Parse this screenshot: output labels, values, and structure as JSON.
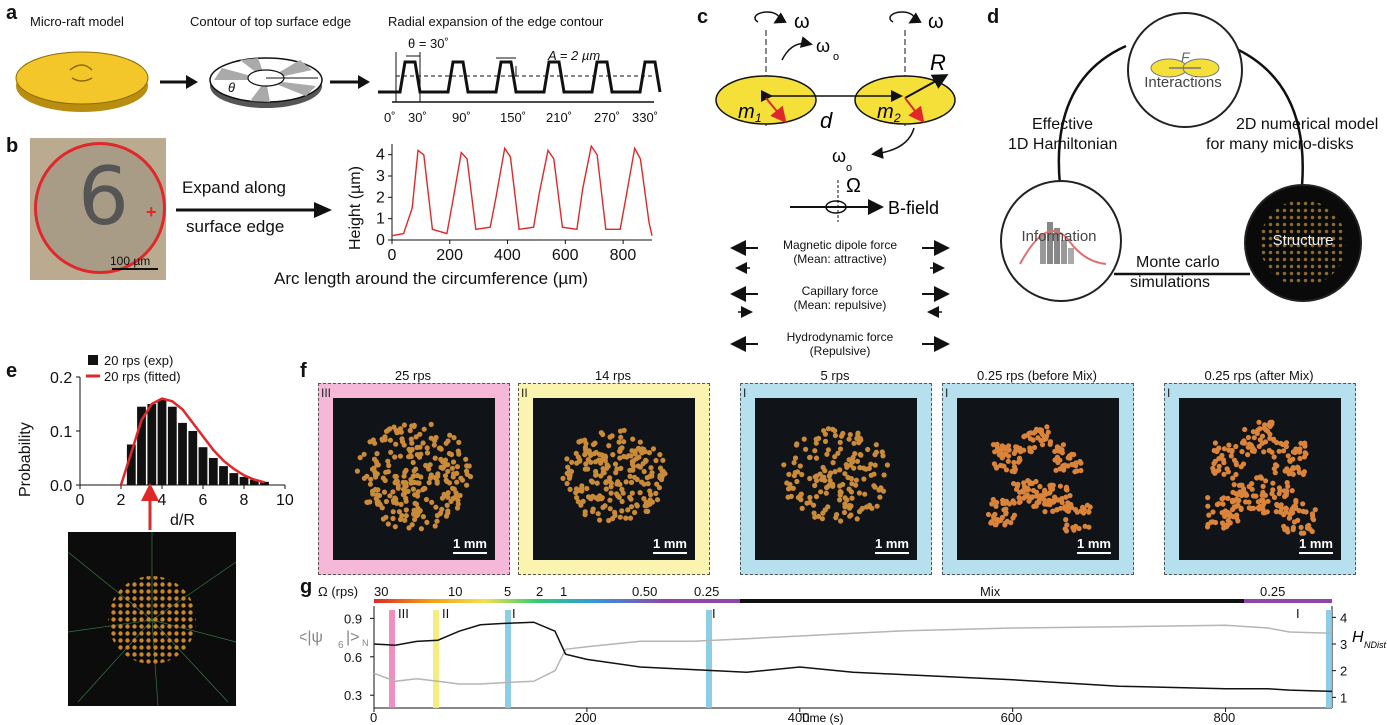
{
  "panels": {
    "a": {
      "label": "a",
      "cap1": "Micro-raft model",
      "cap2": "Contour of top surface edge",
      "cap3": "Radial expansion of the edge contour",
      "theta_label": "θ = 30˚",
      "amp_label": "A = 2 µm",
      "theta_sym": "θ",
      "ticks": [
        "0˚",
        "30˚",
        "90˚",
        "150˚",
        "210˚",
        "270˚",
        "330˚"
      ]
    },
    "b": {
      "label": "b",
      "coin_number": "6",
      "scale": "100 µm",
      "expand_line1": "Expand along",
      "expand_line2": "surface edge",
      "ylabel": "Height (µm)",
      "xlabel": "Arc length around the circumference (µm)",
      "yticks": [
        "0",
        "1",
        "2",
        "3",
        "4"
      ],
      "xticks": [
        "0",
        "200",
        "400",
        "600",
        "800"
      ]
    },
    "c": {
      "label": "c",
      "omega": "ω",
      "omega_o": "ω",
      "omega_o_sub": "o",
      "R": "R",
      "d": "d",
      "m1": "m",
      "m1_sub": "1",
      "m2": "m",
      "m2_sub": "2",
      "Omega": "Ω",
      "bfield": "B-field",
      "forces": [
        {
          "name": "Magnetic dipole force",
          "desc": "(Mean: attractive)"
        },
        {
          "name": "Capillary force",
          "desc": "(Mean: repulsive)"
        },
        {
          "name": "Hydrodynamic force",
          "desc": "(Repulsive)"
        }
      ]
    },
    "d": {
      "label": "d",
      "top": "Interactions",
      "F": "F",
      "left": "Information",
      "right": "Structure",
      "edge_left_1": "Effective",
      "edge_left_2": "1D Hamiltonian",
      "edge_right_1": "2D numerical model",
      "edge_right_2": "for many micro-disks",
      "edge_bottom_1": "Monte carlo",
      "edge_bottom_2": "simulations"
    },
    "e": {
      "label": "e"
    },
    "f": {
      "label": "f",
      "snapshots": [
        {
          "title": "25 rps",
          "regime": "III",
          "color": "#f5b8d8"
        },
        {
          "title": "14 rps",
          "regime": "II",
          "color": "#fbf3b0"
        },
        {
          "title": "5 rps",
          "regime": "I",
          "color": "#b7e0ee"
        },
        {
          "title": "0.25 rps (before Mix)",
          "regime": "I",
          "color": "#b7e0ee"
        },
        {
          "title": "0.25 rps (after Mix)",
          "regime": "I",
          "color": "#b7e0ee"
        }
      ],
      "scale": "1 mm"
    },
    "g": {
      "label": "g",
      "omega_axis": "Ω (rps)",
      "omega_ticks": [
        "30",
        "10",
        "5",
        "2",
        "1",
        "0.50",
        "0.25"
      ],
      "mix": "Mix",
      "omega_end": "0.25",
      "regimes": [
        "III",
        "II",
        "I",
        "I",
        "I"
      ],
      "left_label": "<|ψ",
      "left_label_sub": "6",
      "left_label_end": "|>",
      "left_label_n": "N",
      "right_label": "H",
      "right_label_sub": "NDist"
    }
  },
  "chart_data": [
    {
      "type": "bar",
      "panel": "e",
      "title": "",
      "xlabel": "d/R",
      "ylabel": "Probability",
      "categories": [
        2.5,
        3.0,
        3.5,
        4.0,
        4.5,
        5.0,
        5.5,
        6.0,
        6.5,
        7.0,
        7.5,
        8.0,
        8.5,
        9.0
      ],
      "series": [
        {
          "name": "20 rps (exp)",
          "values": [
            0.075,
            0.145,
            0.15,
            0.158,
            0.145,
            0.115,
            0.1,
            0.07,
            0.05,
            0.035,
            0.022,
            0.015,
            0.01,
            0.006
          ]
        },
        {
          "name": "20 rps (fitted)",
          "x": [
            2.0,
            2.5,
            3.0,
            3.5,
            4.0,
            4.5,
            5.0,
            5.5,
            6.0,
            6.5,
            7.0,
            7.5,
            8.0,
            8.5,
            9.0
          ],
          "values": [
            0.0,
            0.06,
            0.12,
            0.15,
            0.16,
            0.155,
            0.14,
            0.115,
            0.09,
            0.065,
            0.045,
            0.03,
            0.018,
            0.01,
            0.005
          ]
        }
      ],
      "xlim": [
        0,
        10
      ],
      "ylim": [
        0,
        0.2
      ],
      "xticks": [
        "0",
        "2",
        "4",
        "6",
        "8",
        "10"
      ],
      "yticks": [
        "0.0",
        "0.1",
        "0.2"
      ]
    },
    {
      "type": "line",
      "panel": "b",
      "title": "",
      "xlabel": "Arc length around the circumference (µm)",
      "ylabel": "Height (µm)",
      "series": [
        {
          "name": "height",
          "x": [
            0,
            40,
            70,
            90,
            110,
            140,
            190,
            210,
            240,
            260,
            290,
            340,
            360,
            390,
            410,
            440,
            490,
            510,
            540,
            560,
            590,
            640,
            660,
            690,
            710,
            740,
            790,
            810,
            840,
            860,
            890,
            900
          ],
          "values": [
            0.2,
            0.3,
            1.5,
            4.2,
            4.0,
            0.5,
            0.3,
            1.8,
            4.1,
            3.8,
            0.5,
            0.6,
            2.0,
            4.3,
            3.9,
            0.5,
            0.6,
            2.2,
            4.2,
            3.8,
            0.6,
            0.5,
            2.4,
            4.4,
            4.0,
            0.5,
            0.5,
            2.0,
            4.3,
            3.8,
            0.8,
            0.2
          ]
        }
      ],
      "xlim": [
        0,
        900
      ],
      "ylim": [
        0,
        4.5
      ]
    },
    {
      "type": "line",
      "panel": "g",
      "xlabel": "Time (s)",
      "ylabel": "<|ψ6|>N",
      "y2label": "HNDist",
      "xticks": [
        "0",
        "200",
        "400",
        "600",
        "800"
      ],
      "yticks": [
        "0.3",
        "0.6",
        "0.9"
      ],
      "y2ticks": [
        "1",
        "2",
        "3",
        "4"
      ],
      "series": [
        {
          "name": "psi6",
          "x": [
            0,
            20,
            40,
            60,
            80,
            100,
            120,
            150,
            170,
            180,
            200,
            250,
            300,
            350,
            400,
            450,
            500,
            600,
            700,
            800,
            840,
            860,
            900
          ],
          "values": [
            0.7,
            0.69,
            0.72,
            0.73,
            0.8,
            0.85,
            0.86,
            0.87,
            0.8,
            0.62,
            0.58,
            0.52,
            0.5,
            0.48,
            0.52,
            0.48,
            0.46,
            0.42,
            0.37,
            0.35,
            0.35,
            0.34,
            0.33
          ]
        },
        {
          "name": "HNDist",
          "x": [
            0,
            20,
            40,
            60,
            80,
            100,
            120,
            150,
            170,
            180,
            200,
            250,
            300,
            350,
            400,
            450,
            500,
            600,
            700,
            800,
            840,
            860,
            900
          ],
          "values": [
            1.9,
            1.6,
            1.7,
            1.6,
            1.5,
            1.5,
            1.55,
            1.6,
            2.0,
            2.8,
            2.9,
            3.1,
            3.1,
            3.2,
            3.3,
            3.4,
            3.5,
            3.6,
            3.65,
            3.7,
            3.6,
            3.45,
            3.4
          ]
        }
      ],
      "xlim": [
        0,
        900
      ]
    }
  ]
}
